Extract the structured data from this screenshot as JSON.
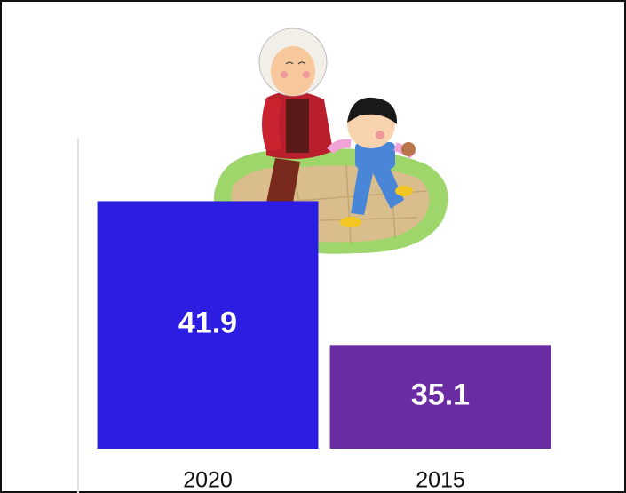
{
  "chart_data": {
    "type": "bar",
    "categories": [
      "2020",
      "2015"
    ],
    "values": [
      41.9,
      35.1
    ],
    "colors": [
      "#2b1ee0",
      "#6a2ba3"
    ],
    "ylim": [
      30.2,
      44.9
    ]
  }
}
